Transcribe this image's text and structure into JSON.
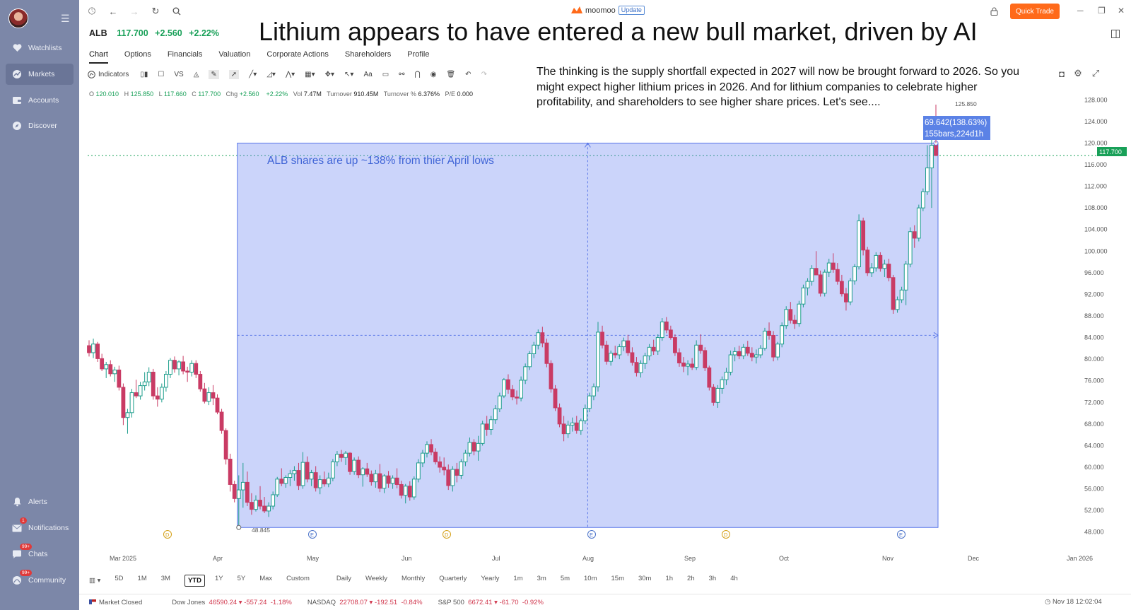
{
  "sidebar": {
    "items": [
      {
        "label": "Watchlists",
        "icon": "heart-icon"
      },
      {
        "label": "Markets",
        "icon": "markets-icon",
        "active": true
      },
      {
        "label": "Accounts",
        "icon": "wallet-icon"
      },
      {
        "label": "Discover",
        "icon": "compass-icon"
      }
    ],
    "bottom_items": [
      {
        "label": "Alerts",
        "icon": "bell-icon",
        "badge": ""
      },
      {
        "label": "Notifications",
        "icon": "mail-icon",
        "badge": "1"
      },
      {
        "label": "Chats",
        "icon": "chat-icon",
        "badge": "99+"
      },
      {
        "label": "Community",
        "icon": "community-icon",
        "badge": "99+"
      }
    ]
  },
  "topbar": {
    "brand": "moomoo",
    "update": "Update",
    "quick_trade": "Quick Trade"
  },
  "ticker": {
    "symbol": "ALB",
    "price": "117.700",
    "change": "+2.560",
    "change_pct": "+2.22%"
  },
  "headline": "Lithium appears to have entered a new bull market, driven by AI",
  "note": "The thinking is the supply shortfall expected in 2027 will now be brought forward to 2026. So you might expect higher lithium prices in 2026. And for lithium companies to celebrate higher profitability, and shareholders to see higher share prices. Let's see....",
  "tabs": [
    "Chart",
    "Options",
    "Financials",
    "Valuation",
    "Corporate Actions",
    "Shareholders",
    "Profile"
  ],
  "tools": {
    "indicators": "Indicators",
    "vs": "VS",
    "text": "Aa"
  },
  "ohlc": {
    "o_label": "O",
    "o": "120.010",
    "h_label": "H",
    "h": "125.850",
    "l_label": "L",
    "l": "117.660",
    "c_label": "C",
    "c": "117.700",
    "chg_label": "Chg",
    "chg": "+2.560",
    "pct": "+2.22%",
    "vol_label": "Vol",
    "vol": "7.47M",
    "turnover_label": "Turnover",
    "turnover": "910.45M",
    "turnover_pct_label": "Turnover %",
    "turnover_pct": "6.376%",
    "pe_label": "P/E",
    "pe": "0.000"
  },
  "chart_data": {
    "type": "candlestick",
    "y_ticks": [
      "128.000",
      "124.000",
      "120.000",
      "116.000",
      "112.000",
      "108.000",
      "104.000",
      "100.000",
      "96.000",
      "92.000",
      "88.000",
      "84.000",
      "80.000",
      "76.000",
      "72.000",
      "68.000",
      "64.000",
      "60.000",
      "56.000",
      "52.000",
      "48.000"
    ],
    "x_ticks": [
      "Mar 2025",
      "Apr",
      "May",
      "Jun",
      "Jul",
      "Aug",
      "Sep",
      "Oct",
      "Nov",
      "Dec",
      "Jan 2026"
    ],
    "ylim": [
      46.0,
      130.0
    ],
    "last_price": "117.700",
    "low_label": "48.845",
    "high_label": "125.850",
    "measure_label_1": "69.642(138.63%)",
    "measure_label_2": "155bars,224d1h",
    "annotation": "ALB shares are up ~138% from thier April lows",
    "events": [
      "D",
      "E",
      "D",
      "E",
      "D",
      "E"
    ],
    "colors": {
      "up": "#1e9e8c",
      "down": "#c93b64",
      "box": "#6b83f0"
    },
    "candles": [
      [
        82.5,
        83.5,
        80.5,
        81.2
      ],
      [
        81.2,
        83.8,
        80.2,
        82.8
      ],
      [
        82.8,
        83.2,
        79.5,
        80.1
      ],
      [
        80.1,
        81.0,
        77.8,
        78.2
      ],
      [
        78.2,
        79.5,
        76.5,
        79.0
      ],
      [
        79.0,
        79.8,
        76.8,
        77.3
      ],
      [
        77.3,
        78.6,
        75.8,
        78.0
      ],
      [
        78.0,
        78.8,
        74.2,
        74.8
      ],
      [
        74.8,
        75.5,
        67.8,
        69.2
      ],
      [
        69.2,
        70.8,
        66.2,
        70.1
      ],
      [
        70.1,
        74.5,
        69.2,
        73.8
      ],
      [
        73.8,
        76.2,
        72.8,
        73.2
      ],
      [
        73.2,
        75.8,
        72.5,
        75.1
      ],
      [
        75.1,
        77.6,
        74.2,
        75.8
      ],
      [
        75.8,
        78.5,
        75.0,
        77.6
      ],
      [
        77.6,
        78.2,
        72.5,
        73.2
      ],
      [
        73.2,
        74.8,
        71.2,
        72.6
      ],
      [
        72.6,
        75.5,
        72.0,
        74.8
      ],
      [
        74.8,
        77.8,
        74.0,
        77.2
      ],
      [
        77.2,
        80.2,
        76.5,
        79.8
      ],
      [
        79.8,
        80.5,
        77.5,
        78.2
      ],
      [
        78.2,
        79.8,
        77.0,
        79.5
      ],
      [
        79.5,
        80.6,
        77.2,
        77.8
      ],
      [
        77.8,
        78.6,
        75.8,
        77.6
      ],
      [
        77.6,
        79.8,
        76.8,
        79.2
      ],
      [
        79.2,
        79.8,
        76.5,
        77.2
      ],
      [
        77.2,
        77.8,
        74.0,
        74.5
      ],
      [
        74.5,
        75.6,
        71.8,
        72.2
      ],
      [
        72.2,
        74.8,
        71.5,
        73.8
      ],
      [
        73.8,
        75.2,
        71.5,
        72.8
      ],
      [
        72.8,
        73.5,
        69.8,
        70.2
      ],
      [
        70.2,
        70.8,
        66.2,
        66.8
      ],
      [
        66.8,
        67.2,
        60.5,
        61.5
      ],
      [
        61.5,
        62.5,
        55.5,
        56.8
      ],
      [
        56.8,
        57.5,
        53.5,
        54.2
      ],
      [
        54.2,
        58.5,
        48.8,
        55.8
      ],
      [
        55.8,
        60.8,
        52.5,
        57.2
      ],
      [
        57.2,
        59.2,
        52.8,
        53.5
      ],
      [
        53.5,
        55.2,
        51.2,
        52.2
      ],
      [
        52.2,
        54.8,
        51.8,
        53.9
      ],
      [
        53.9,
        56.5,
        52.2,
        52.8
      ],
      [
        52.8,
        54.5,
        51.5,
        51.9
      ],
      [
        51.9,
        53.5,
        50.8,
        52.8
      ],
      [
        52.8,
        55.5,
        52.2,
        54.9
      ],
      [
        54.9,
        58.2,
        54.5,
        57.8
      ],
      [
        57.8,
        59.8,
        56.5,
        57.0
      ],
      [
        57.0,
        58.5,
        56.2,
        58.1
      ],
      [
        58.1,
        59.5,
        56.5,
        58.8
      ],
      [
        58.8,
        60.2,
        57.5,
        59.4
      ],
      [
        59.4,
        60.8,
        55.8,
        56.6
      ],
      [
        56.6,
        62.8,
        56.0,
        60.9
      ],
      [
        60.9,
        62.0,
        57.2,
        57.8
      ],
      [
        57.8,
        59.5,
        56.5,
        59.0
      ],
      [
        59.0,
        60.2,
        55.5,
        56.2
      ],
      [
        56.2,
        58.5,
        55.0,
        57.7
      ],
      [
        57.7,
        59.2,
        56.4,
        56.9
      ],
      [
        56.9,
        59.0,
        56.3,
        58.0
      ],
      [
        58.0,
        61.5,
        57.4,
        61.0
      ],
      [
        61.0,
        63.0,
        60.2,
        62.4
      ],
      [
        62.4,
        63.2,
        61.0,
        61.8
      ],
      [
        61.8,
        63.0,
        60.4,
        62.6
      ],
      [
        62.6,
        62.8,
        58.6,
        59.2
      ],
      [
        59.2,
        61.8,
        58.6,
        61.3
      ],
      [
        61.3,
        62.0,
        58.0,
        58.6
      ],
      [
        58.6,
        60.0,
        56.4,
        59.7
      ],
      [
        59.7,
        60.8,
        58.2,
        58.7
      ],
      [
        58.7,
        59.4,
        56.6,
        57.3
      ],
      [
        57.3,
        59.5,
        56.2,
        58.8
      ],
      [
        58.8,
        60.6,
        55.4,
        56.1
      ],
      [
        56.1,
        58.7,
        55.2,
        58.4
      ],
      [
        58.4,
        59.3,
        56.2,
        57.0
      ],
      [
        57.0,
        58.5,
        56.0,
        58.0
      ],
      [
        58.0,
        59.8,
        56.1,
        56.8
      ],
      [
        56.8,
        57.5,
        54.2,
        54.8
      ],
      [
        54.8,
        56.9,
        53.3,
        56.5
      ],
      [
        56.5,
        57.4,
        53.8,
        54.5
      ],
      [
        54.5,
        58.3,
        54.0,
        57.8
      ],
      [
        57.8,
        61.5,
        57.2,
        60.8
      ],
      [
        60.8,
        63.2,
        60.0,
        62.6
      ],
      [
        62.6,
        64.8,
        61.8,
        64.2
      ],
      [
        64.2,
        65.2,
        62.2,
        62.8
      ],
      [
        62.8,
        63.5,
        60.5,
        61.0
      ],
      [
        61.0,
        62.0,
        59.0,
        60.0
      ],
      [
        60.0,
        61.8,
        58.5,
        59.5
      ],
      [
        59.5,
        60.5,
        55.8,
        56.6
      ],
      [
        56.6,
        60.2,
        55.5,
        59.6
      ],
      [
        59.6,
        60.8,
        57.2,
        58.5
      ],
      [
        58.5,
        61.5,
        57.8,
        61.0
      ],
      [
        61.0,
        63.2,
        60.2,
        62.6
      ],
      [
        62.6,
        65.5,
        62.0,
        64.6
      ],
      [
        64.6,
        65.2,
        62.2,
        63.0
      ],
      [
        63.0,
        65.8,
        61.2,
        64.4
      ],
      [
        64.4,
        68.6,
        64.0,
        68.0
      ],
      [
        68.0,
        69.5,
        65.8,
        67.0
      ],
      [
        67.0,
        69.5,
        66.0,
        68.8
      ],
      [
        68.8,
        71.5,
        68.0,
        70.8
      ],
      [
        70.8,
        73.8,
        70.2,
        73.2
      ],
      [
        73.2,
        76.5,
        72.8,
        76.2
      ],
      [
        76.2,
        77.2,
        73.6,
        74.4
      ],
      [
        74.4,
        75.2,
        72.4,
        73.0
      ],
      [
        73.0,
        74.2,
        71.6,
        72.8
      ],
      [
        72.8,
        76.8,
        72.2,
        76.1
      ],
      [
        76.1,
        79.2,
        75.4,
        78.6
      ],
      [
        78.6,
        81.5,
        78.0,
        81.0
      ],
      [
        81.0,
        83.2,
        80.2,
        82.6
      ],
      [
        82.6,
        85.5,
        81.8,
        84.9
      ],
      [
        84.9,
        86.0,
        82.2,
        83.0
      ],
      [
        83.0,
        83.8,
        78.5,
        79.2
      ],
      [
        79.2,
        79.8,
        73.8,
        74.5
      ],
      [
        74.5,
        75.2,
        70.4,
        71.0
      ],
      [
        71.0,
        71.8,
        67.4,
        68.0
      ],
      [
        68.0,
        69.5,
        64.8,
        66.2
      ],
      [
        66.2,
        68.6,
        65.4,
        67.8
      ],
      [
        67.8,
        69.2,
        66.6,
        68.2
      ],
      [
        68.2,
        69.5,
        66.2,
        66.8
      ],
      [
        66.8,
        69.0,
        66.0,
        68.6
      ],
      [
        68.6,
        71.6,
        68.0,
        70.9
      ],
      [
        70.9,
        73.8,
        70.2,
        73.2
      ],
      [
        73.2,
        75.5,
        72.4,
        74.9
      ],
      [
        74.9,
        86.9,
        74.0,
        85.0
      ],
      [
        85.0,
        86.2,
        82.0,
        82.6
      ],
      [
        82.6,
        83.4,
        79.0,
        79.6
      ],
      [
        79.6,
        81.6,
        78.8,
        81.1
      ],
      [
        81.1,
        82.5,
        80.2,
        80.8
      ],
      [
        80.8,
        82.8,
        80.0,
        82.3
      ],
      [
        82.3,
        84.0,
        81.5,
        83.4
      ],
      [
        83.4,
        84.5,
        80.6,
        81.2
      ],
      [
        81.2,
        82.2,
        78.8,
        79.4
      ],
      [
        79.4,
        80.4,
        76.8,
        77.5
      ],
      [
        77.5,
        79.8,
        76.6,
        79.2
      ],
      [
        79.2,
        81.2,
        78.2,
        80.6
      ],
      [
        80.6,
        82.8,
        79.8,
        82.2
      ],
      [
        82.2,
        83.6,
        80.8,
        81.5
      ],
      [
        81.5,
        84.6,
        80.8,
        84.0
      ],
      [
        84.0,
        87.6,
        83.4,
        86.9
      ],
      [
        86.9,
        87.8,
        84.8,
        85.4
      ],
      [
        85.4,
        86.2,
        83.6,
        84.0
      ],
      [
        84.0,
        84.6,
        80.6,
        81.2
      ],
      [
        81.2,
        82.0,
        78.6,
        79.3
      ],
      [
        79.3,
        80.4,
        77.6,
        78.7
      ],
      [
        78.7,
        79.8,
        77.0,
        79.1
      ],
      [
        79.1,
        80.2,
        78.0,
        78.5
      ],
      [
        78.5,
        83.5,
        78.0,
        82.6
      ],
      [
        82.6,
        84.6,
        81.0,
        81.6
      ],
      [
        81.6,
        82.2,
        77.8,
        78.4
      ],
      [
        78.4,
        78.8,
        74.2,
        74.8
      ],
      [
        74.8,
        75.4,
        71.4,
        72.0
      ],
      [
        72.0,
        75.2,
        71.0,
        74.6
      ],
      [
        74.6,
        76.8,
        73.6,
        76.2
      ],
      [
        76.2,
        78.4,
        75.2,
        77.6
      ],
      [
        77.6,
        81.6,
        77.0,
        80.8
      ],
      [
        80.8,
        82.2,
        79.6,
        81.4
      ],
      [
        81.4,
        82.5,
        80.0,
        80.6
      ],
      [
        80.6,
        82.8,
        80.0,
        82.2
      ],
      [
        82.2,
        83.4,
        80.6,
        81.1
      ],
      [
        81.1,
        82.2,
        79.6,
        80.4
      ],
      [
        80.4,
        81.8,
        79.2,
        80.8
      ],
      [
        80.8,
        82.6,
        80.2,
        82.0
      ],
      [
        82.0,
        85.8,
        81.6,
        85.2
      ],
      [
        85.2,
        86.8,
        83.6,
        84.4
      ],
      [
        84.4,
        85.2,
        79.6,
        80.4
      ],
      [
        80.4,
        83.2,
        79.8,
        82.8
      ],
      [
        82.8,
        86.8,
        82.2,
        86.2
      ],
      [
        86.2,
        89.8,
        85.6,
        89.2
      ],
      [
        89.2,
        90.6,
        86.6,
        87.2
      ],
      [
        87.2,
        88.2,
        85.6,
        86.6
      ],
      [
        86.6,
        90.8,
        86.0,
        90.2
      ],
      [
        90.2,
        93.8,
        89.6,
        93.2
      ],
      [
        93.2,
        95.0,
        91.8,
        94.4
      ],
      [
        94.4,
        97.4,
        93.6,
        96.8
      ],
      [
        96.8,
        100.0,
        95.8,
        95.6
      ],
      [
        95.6,
        96.4,
        91.6,
        92.2
      ],
      [
        92.2,
        96.6,
        91.6,
        96.1
      ],
      [
        96.1,
        98.6,
        95.2,
        97.8
      ],
      [
        97.8,
        99.6,
        96.0,
        96.6
      ],
      [
        96.6,
        97.8,
        93.8,
        94.4
      ],
      [
        94.4,
        95.6,
        91.6,
        92.1
      ],
      [
        92.1,
        93.2,
        89.0,
        90.6
      ],
      [
        90.6,
        95.0,
        90.0,
        94.5
      ],
      [
        94.5,
        97.6,
        93.8,
        97.1
      ],
      [
        97.1,
        106.8,
        96.6,
        105.6
      ],
      [
        105.6,
        106.2,
        99.2,
        100.2
      ],
      [
        100.2,
        100.8,
        95.4,
        96.0
      ],
      [
        96.0,
        97.8,
        95.2,
        96.9
      ],
      [
        96.9,
        99.8,
        96.2,
        99.2
      ],
      [
        99.2,
        99.8,
        96.2,
        96.8
      ],
      [
        96.8,
        98.4,
        95.2,
        97.6
      ],
      [
        97.6,
        98.6,
        94.4,
        95.1
      ],
      [
        95.1,
        95.6,
        88.4,
        89.2
      ],
      [
        89.2,
        91.6,
        88.6,
        91.0
      ],
      [
        91.0,
        93.4,
        90.4,
        92.8
      ],
      [
        92.8,
        98.2,
        90.0,
        97.6
      ],
      [
        97.6,
        104.4,
        97.0,
        103.6
      ],
      [
        103.6,
        104.8,
        100.6,
        102.4
      ],
      [
        102.4,
        108.6,
        101.8,
        108.0
      ],
      [
        108.0,
        111.6,
        107.4,
        111.0
      ],
      [
        111.0,
        119.6,
        110.4,
        115.4
      ],
      [
        115.4,
        122.2,
        108.0,
        119.6
      ],
      [
        120.0,
        125.8,
        117.6,
        117.7
      ]
    ]
  },
  "timeframes": [
    "5D",
    "1M",
    "3M",
    "YTD",
    "1Y",
    "5Y",
    "Max",
    "Custom",
    "Daily",
    "Weekly",
    "Monthly",
    "Quarterly",
    "Yearly",
    "1m",
    "3m",
    "5m",
    "10m",
    "15m",
    "30m",
    "1h",
    "2h",
    "3h",
    "4h"
  ],
  "status": {
    "market": "Market Closed",
    "dow_label": "Dow Jones",
    "dow": "46590.24",
    "dow_chg": "-557.24",
    "dow_pct": "-1.18%",
    "nasdaq_label": "NASDAQ",
    "nasdaq": "22708.07",
    "nasdaq_chg": "-192.51",
    "nasdaq_pct": "-0.84%",
    "sp_label": "S&P 500",
    "sp": "6672.41",
    "sp_chg": "-61.70",
    "sp_pct": "-0.92%",
    "time": "Nov 18 12:02:04"
  }
}
